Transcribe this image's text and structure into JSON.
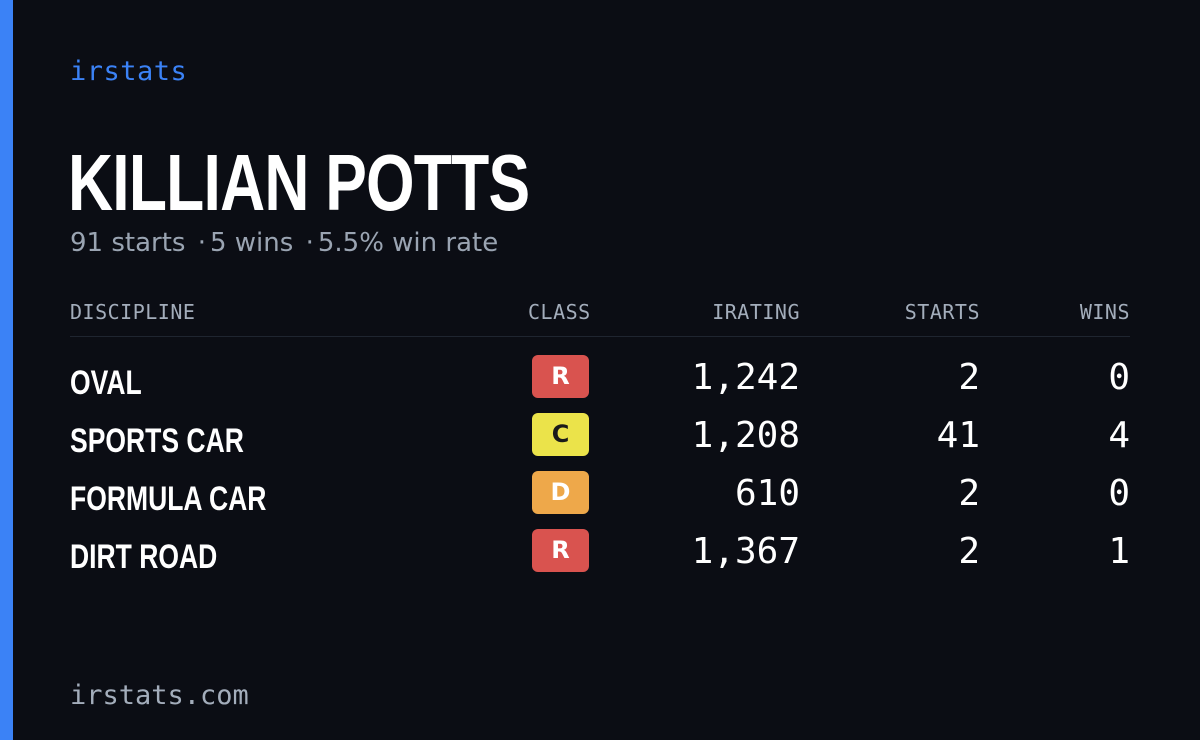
{
  "brand": "irstats",
  "driver": {
    "name": "KILLIAN POTTS",
    "starts_text": "91 starts",
    "wins_text": "5 wins",
    "winrate_text": "5.5% win rate",
    "separator": "·"
  },
  "table": {
    "headers": {
      "discipline": "DISCIPLINE",
      "class": "CLASS",
      "irating": "IRATING",
      "starts": "STARTS",
      "wins": "WINS"
    },
    "rows": [
      {
        "discipline": "OVAL",
        "class": "R",
        "class_bg": "#d9534f",
        "class_fg": "#ffffff",
        "irating": "1,242",
        "starts": "2",
        "wins": "0"
      },
      {
        "discipline": "SPORTS CAR",
        "class": "C",
        "class_bg": "#ebe34a",
        "class_fg": "#1a1a1a",
        "irating": "1,208",
        "starts": "41",
        "wins": "4"
      },
      {
        "discipline": "FORMULA CAR",
        "class": "D",
        "class_bg": "#eea84a",
        "class_fg": "#ffffff",
        "irating": "610",
        "starts": "2",
        "wins": "0"
      },
      {
        "discipline": "DIRT ROAD",
        "class": "R",
        "class_bg": "#d9534f",
        "class_fg": "#ffffff",
        "irating": "1,367",
        "starts": "2",
        "wins": "1"
      }
    ]
  },
  "footer": "irstats.com",
  "colors": {
    "background": "#0b0d14",
    "accent": "#3b82f6",
    "muted": "#9aa4b2"
  }
}
